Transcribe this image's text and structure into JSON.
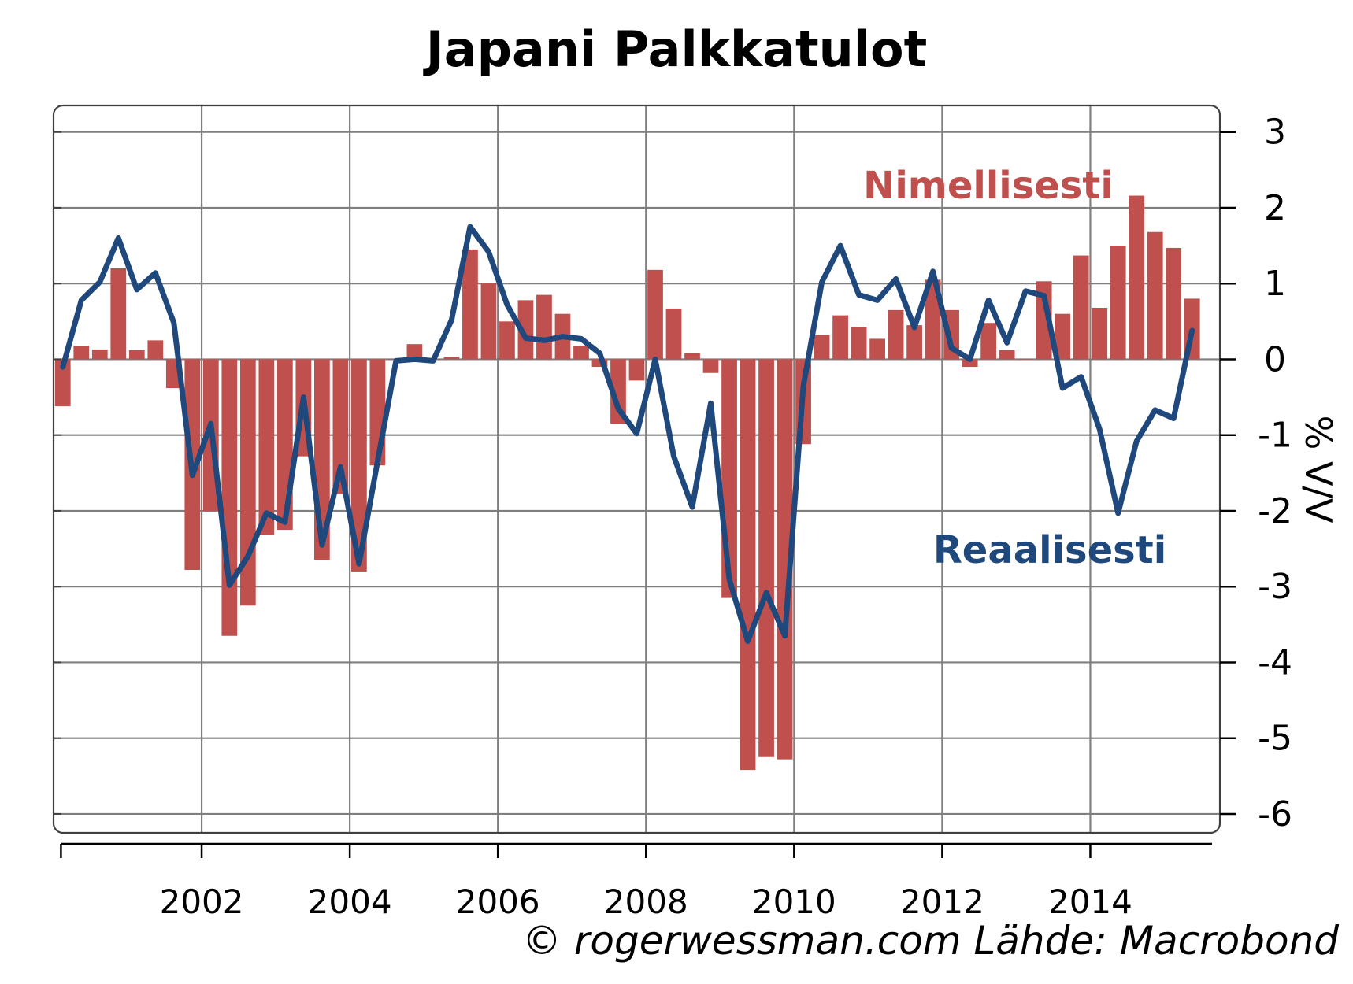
{
  "title": "Japani Palkkatulot",
  "source": "© rogerwessman.com Lähde: Macrobond",
  "chart_data": {
    "type": "bar",
    "ylabel": "% V/V",
    "ylim": [
      -6.25,
      3.35
    ],
    "xlim": [
      2000.0,
      2015.75
    ],
    "xticks": [
      2002,
      2004,
      2006,
      2008,
      2010,
      2012,
      2014
    ],
    "yticks": [
      3,
      2,
      1,
      0,
      -1,
      -2,
      -3,
      -4,
      -5,
      -6
    ],
    "grid": true,
    "colors": {
      "nominal": "#c0504d",
      "real": "#1f497d",
      "grid": "#7f7f7f"
    },
    "series": [
      {
        "name": "Nimellisesti",
        "type": "bar",
        "color": "#c0504d",
        "x": [
          2000.125,
          2000.375,
          2000.625,
          2000.875,
          2001.125,
          2001.375,
          2001.625,
          2001.875,
          2002.125,
          2002.375,
          2002.625,
          2002.875,
          2003.125,
          2003.375,
          2003.625,
          2003.875,
          2004.125,
          2004.375,
          2004.625,
          2004.875,
          2005.125,
          2005.375,
          2005.625,
          2005.875,
          2006.125,
          2006.375,
          2006.625,
          2006.875,
          2007.125,
          2007.375,
          2007.625,
          2007.875,
          2008.125,
          2008.375,
          2008.625,
          2008.875,
          2009.125,
          2009.375,
          2009.625,
          2009.875,
          2010.125,
          2010.375,
          2010.625,
          2010.875,
          2011.125,
          2011.375,
          2011.625,
          2011.875,
          2012.125,
          2012.375,
          2012.625,
          2012.875,
          2013.125,
          2013.375,
          2013.625,
          2013.875,
          2014.125,
          2014.375,
          2014.625,
          2014.875,
          2015.125,
          2015.375
        ],
        "values": [
          -0.62,
          0.18,
          0.13,
          1.2,
          0.12,
          0.25,
          -0.38,
          -2.78,
          -2.0,
          -3.65,
          -3.25,
          -2.32,
          -2.25,
          -1.28,
          -2.65,
          -1.78,
          -2.8,
          -1.4,
          0.0,
          0.2,
          0.0,
          0.03,
          1.45,
          1.0,
          0.5,
          0.78,
          0.85,
          0.6,
          0.18,
          -0.1,
          -0.85,
          -0.28,
          1.18,
          0.67,
          0.08,
          -0.18,
          -3.15,
          -5.42,
          -5.25,
          -5.28,
          -1.12,
          0.32,
          0.58,
          0.43,
          0.27,
          0.65,
          0.45,
          1.05,
          0.65,
          -0.1,
          0.48,
          0.12,
          0.0,
          1.03,
          0.6,
          1.37,
          0.68,
          1.5,
          2.16,
          1.68,
          1.47,
          0.8
        ]
      },
      {
        "name": "Reaalisesti",
        "type": "line",
        "color": "#1f497d",
        "x": [
          2000.125,
          2000.375,
          2000.625,
          2000.875,
          2001.125,
          2001.375,
          2001.625,
          2001.875,
          2002.125,
          2002.375,
          2002.625,
          2002.875,
          2003.125,
          2003.375,
          2003.625,
          2003.875,
          2004.125,
          2004.375,
          2004.625,
          2004.875,
          2005.125,
          2005.375,
          2005.625,
          2005.875,
          2006.125,
          2006.375,
          2006.625,
          2006.875,
          2007.125,
          2007.375,
          2007.625,
          2007.875,
          2008.125,
          2008.375,
          2008.625,
          2008.875,
          2009.125,
          2009.375,
          2009.625,
          2009.875,
          2010.125,
          2010.375,
          2010.625,
          2010.875,
          2011.125,
          2011.375,
          2011.625,
          2011.875,
          2012.125,
          2012.375,
          2012.625,
          2012.875,
          2013.125,
          2013.375,
          2013.625,
          2013.875,
          2014.125,
          2014.375,
          2014.625,
          2014.875,
          2015.125,
          2015.375
        ],
        "values": [
          -0.1,
          0.78,
          1.02,
          1.6,
          0.92,
          1.14,
          0.48,
          -1.53,
          -0.85,
          -2.98,
          -2.6,
          -2.03,
          -2.15,
          -0.5,
          -2.45,
          -1.42,
          -2.7,
          -1.35,
          -0.02,
          0.0,
          -0.02,
          0.52,
          1.75,
          1.42,
          0.72,
          0.28,
          0.25,
          0.3,
          0.27,
          0.08,
          -0.65,
          -0.98,
          0.0,
          -1.28,
          -1.95,
          -0.58,
          -2.9,
          -3.72,
          -3.08,
          -3.65,
          -0.35,
          1.02,
          1.5,
          0.85,
          0.78,
          1.06,
          0.42,
          1.16,
          0.15,
          0.0,
          0.78,
          0.22,
          0.9,
          0.84,
          -0.38,
          -0.23,
          -0.92,
          -2.03,
          -1.08,
          -0.67,
          -0.78,
          0.38
        ]
      }
    ],
    "annotations": [
      {
        "text": "Nimellisesti",
        "series": "Nimellisesti"
      },
      {
        "text": "Reaalisesti",
        "series": "Reaalisesti"
      }
    ]
  }
}
